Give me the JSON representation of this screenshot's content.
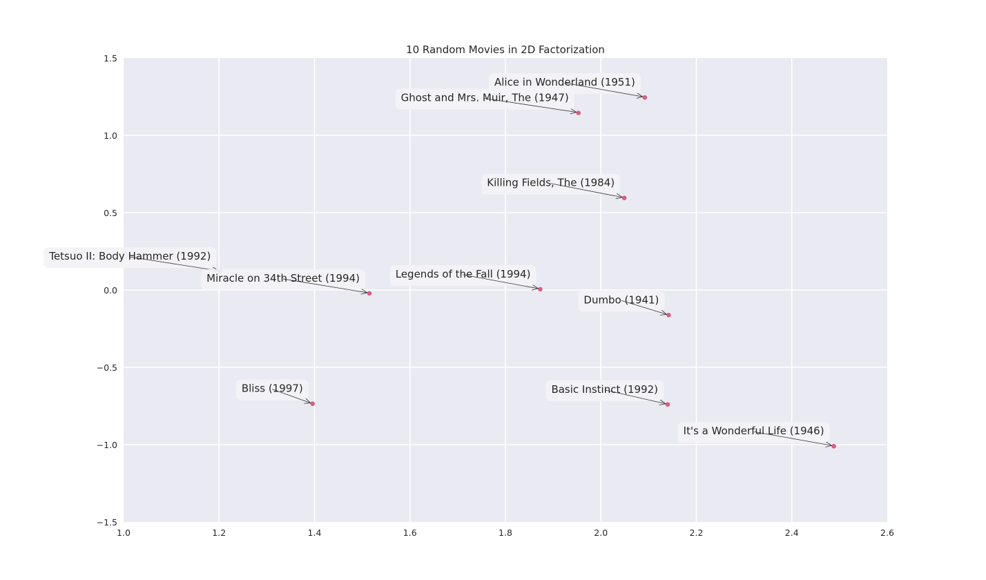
{
  "chart_data": {
    "type": "scatter",
    "title": "10 Random Movies in 2D Factorization",
    "xlabel": "",
    "ylabel": "",
    "xlim": [
      1.0,
      2.6
    ],
    "ylim": [
      -1.5,
      1.5
    ],
    "xticks": [
      1.0,
      1.2,
      1.4,
      1.6,
      1.8,
      2.0,
      2.2,
      2.4,
      2.6
    ],
    "yticks": [
      -1.5,
      -1.0,
      -0.5,
      0.0,
      0.5,
      1.0,
      1.5
    ],
    "xtick_labels": [
      "1.0",
      "1.2",
      "1.4",
      "1.6",
      "1.8",
      "2.0",
      "2.2",
      "2.4",
      "2.6"
    ],
    "ytick_labels": [
      "−1.5",
      "−1.0",
      "−0.5",
      "0.0",
      "0.5",
      "1.0",
      "1.5"
    ],
    "grid": true,
    "colors": {
      "background": "#eaeaf2",
      "grid": "#ffffff",
      "point": "#d65f83"
    },
    "points": [
      {
        "label": "Alice in Wonderland (1951)",
        "x": 2.092,
        "y": 1.245
      },
      {
        "label": "Ghost and Mrs. Muir, The (1947)",
        "x": 1.953,
        "y": 1.145
      },
      {
        "label": "Killing Fields, The (1984)",
        "x": 2.049,
        "y": 0.595
      },
      {
        "label": "Tetsuo II: Body Hammer (1992)",
        "x": 1.203,
        "y": 0.12
      },
      {
        "label": "Miracle on 34th Street (1994)",
        "x": 1.515,
        "y": -0.022
      },
      {
        "label": "Legends of the Fall (1994)",
        "x": 1.873,
        "y": 0.005
      },
      {
        "label": "Dumbo (1941)",
        "x": 2.142,
        "y": -0.162
      },
      {
        "label": "Bliss (1997)",
        "x": 1.396,
        "y": -0.735
      },
      {
        "label": "Basic Instinct (1992)",
        "x": 2.14,
        "y": -0.74
      },
      {
        "label": "It's a Wonderful Life (1946)",
        "x": 2.488,
        "y": -1.01
      }
    ]
  }
}
